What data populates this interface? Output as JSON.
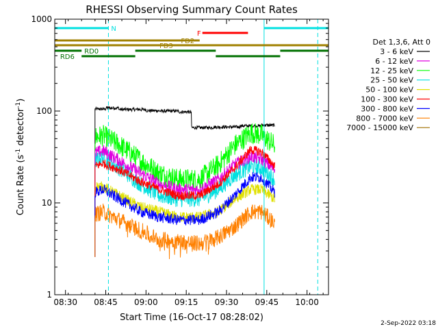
{
  "chart_data": {
    "type": "line",
    "title": "RHESSI Observing Summary Count Rates",
    "xlabel": "Start Time (16-Oct-17 08:28:02)",
    "ylabel_main": "Count Rate (s",
    "ylabel_sup1": "-1",
    "ylabel_mid": " detector",
    "ylabel_sup2": "-1",
    "ylabel_end": ")",
    "yscale": "log",
    "xlim": [
      "08:26",
      "10:08"
    ],
    "ylim": [
      1,
      1000
    ],
    "x_ticks": [
      "08:30",
      "08:45",
      "09:00",
      "09:15",
      "09:30",
      "09:45",
      "10:00"
    ],
    "y_ticks": [
      {
        "value": 1,
        "label": "1"
      },
      {
        "value": 10,
        "label": "10"
      },
      {
        "value": 100,
        "label": "100"
      },
      {
        "value": 1000,
        "label": "1000"
      }
    ],
    "legend_title": "Det 1,3,6, Att 0",
    "series": [
      {
        "name": "3 - 6 keV",
        "color": "#000000",
        "x": [
          "08:41",
          "08:45",
          "08:50",
          "09:00",
          "09:05",
          "09:12",
          "09:16",
          "09:17",
          "09:25",
          "09:35",
          "09:43",
          "09:48"
        ],
        "values": [
          105,
          108,
          104,
          101,
          100,
          98,
          97,
          66,
          67,
          69,
          70,
          67
        ]
      },
      {
        "name": "6 - 12 keV",
        "color": "#e000e0",
        "x": [
          "08:41",
          "08:44",
          "08:50",
          "08:58",
          "09:05",
          "09:12",
          "09:20",
          "09:27",
          "09:33",
          "09:39",
          "09:43",
          "09:48"
        ],
        "values": [
          35,
          37,
          29,
          21,
          16,
          14,
          14,
          18,
          26,
          32,
          30,
          23
        ]
      },
      {
        "name": "12 - 25 keV",
        "color": "#00ff00",
        "x": [
          "08:41",
          "08:44",
          "08:50",
          "08:58",
          "09:05",
          "09:12",
          "09:20",
          "09:27",
          "09:33",
          "09:39",
          "09:43",
          "09:48"
        ],
        "values": [
          52,
          54,
          43,
          29,
          21,
          18,
          18,
          26,
          42,
          58,
          55,
          42
        ]
      },
      {
        "name": "25 - 50 keV",
        "color": "#00e0e0",
        "x": [
          "08:41",
          "08:44",
          "08:50",
          "08:58",
          "09:05",
          "09:12",
          "09:20",
          "09:27",
          "09:33",
          "09:39",
          "09:43",
          "09:48"
        ],
        "values": [
          29,
          31,
          24,
          16,
          12,
          11,
          11,
          14,
          20,
          25,
          24,
          18
        ]
      },
      {
        "name": "50 - 100 keV",
        "color": "#e0e000",
        "x": [
          "08:41",
          "08:44",
          "08:50",
          "08:58",
          "09:05",
          "09:12",
          "09:20",
          "09:27",
          "09:33",
          "09:39",
          "09:43",
          "09:48"
        ],
        "values": [
          15,
          15,
          12,
          9,
          8,
          7,
          7,
          8,
          11,
          14,
          14,
          11
        ]
      },
      {
        "name": "100 - 300 keV",
        "color": "#ff0000",
        "x": [
          "08:41",
          "08:44",
          "08:50",
          "08:58",
          "09:05",
          "09:12",
          "09:20",
          "09:27",
          "09:33",
          "09:39",
          "09:43",
          "09:48"
        ],
        "values": [
          25,
          27,
          23,
          17,
          14,
          12,
          12,
          16,
          24,
          38,
          36,
          25
        ]
      },
      {
        "name": "300 - 800 keV",
        "color": "#0000ff",
        "x": [
          "08:41",
          "08:44",
          "08:50",
          "08:58",
          "09:05",
          "09:12",
          "09:20",
          "09:27",
          "09:33",
          "09:39",
          "09:43",
          "09:48"
        ],
        "values": [
          13,
          14,
          11,
          8,
          7,
          6.5,
          6.5,
          8,
          12,
          19,
          19,
          13
        ]
      },
      {
        "name": "800 - 7000 keV",
        "color": "#ff8000",
        "x": [
          "08:41",
          "08:44",
          "08:50",
          "08:58",
          "09:05",
          "09:12",
          "09:20",
          "09:27",
          "09:33",
          "09:39",
          "09:43",
          "09:48"
        ],
        "values": [
          7.5,
          8,
          6.5,
          5,
          4,
          3.8,
          3.6,
          4.2,
          5.5,
          8,
          8,
          6
        ]
      },
      {
        "name": "7000 - 15000 keV",
        "color": "#a07000",
        "x": [],
        "values": []
      }
    ],
    "flag_bars": [
      {
        "label": "N",
        "color": "#00e0e0",
        "row": 1,
        "segments": [
          [
            "08:26",
            "08:46"
          ],
          [
            "09:44",
            "10:08"
          ]
        ],
        "label_at": "08:47"
      },
      {
        "label": "F",
        "color": "#ff0000",
        "row": 2,
        "segments": [
          [
            "09:21",
            "09:38"
          ]
        ],
        "label_at": "09:19"
      },
      {
        "label": "FD2",
        "color": "#a08000",
        "row": 3,
        "segments": [
          [
            "08:26",
            "09:20"
          ]
        ],
        "label_at": "09:13"
      },
      {
        "label": "FD3",
        "color": "#a08000",
        "row": 4,
        "segments": [
          [
            "08:26",
            "10:08"
          ]
        ],
        "label_at": "09:05"
      },
      {
        "label": "RD0",
        "color": "#007000",
        "row": 5,
        "segments": [
          [
            "08:26",
            "08:36"
          ],
          [
            "08:56",
            "09:26"
          ],
          [
            "09:50",
            "10:08"
          ]
        ],
        "label_at": "08:37"
      },
      {
        "label": "RD6",
        "color": "#007000",
        "row": 6,
        "segments": [
          [
            "08:36",
            "08:56"
          ],
          [
            "09:26",
            "09:50"
          ]
        ],
        "label_at": "08:28"
      }
    ],
    "vertical_markers": [
      {
        "x": "08:26",
        "color": "#00e0e0",
        "style": "solid"
      },
      {
        "x": "08:46",
        "color": "#00e0e0",
        "style": "dashed"
      },
      {
        "x": "09:44",
        "color": "#00e0e0",
        "style": "solid"
      },
      {
        "x": "10:04",
        "color": "#00e0e0",
        "style": "dashed"
      }
    ],
    "grid": false,
    "legend_position": "right"
  },
  "footer": {
    "timestamp": "2-Sep-2022 03:18"
  }
}
